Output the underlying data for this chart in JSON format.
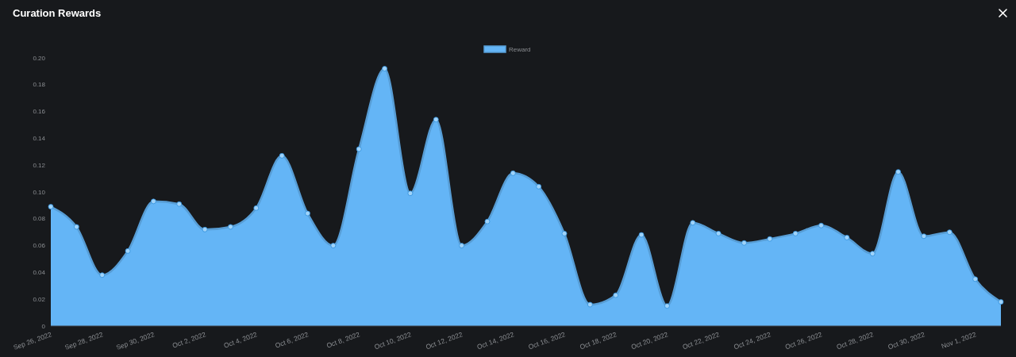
{
  "chart_data": {
    "type": "area",
    "title": "Curation Rewards",
    "x": [
      "2022-09-26",
      "2022-09-27",
      "2022-09-28",
      "2022-09-29",
      "2022-09-30",
      "2022-10-01",
      "2022-10-02",
      "2022-10-03",
      "2022-10-04",
      "2022-10-05",
      "2022-10-06",
      "2022-10-07",
      "2022-10-08",
      "2022-10-09",
      "2022-10-10",
      "2022-10-11",
      "2022-10-12",
      "2022-10-13",
      "2022-10-14",
      "2022-10-15",
      "2022-10-16",
      "2022-10-17",
      "2022-10-18",
      "2022-10-19",
      "2022-10-20",
      "2022-10-21",
      "2022-10-22",
      "2022-10-23",
      "2022-10-24",
      "2022-10-25",
      "2022-10-26",
      "2022-10-27",
      "2022-10-28",
      "2022-10-29",
      "2022-10-30",
      "2022-10-31",
      "2022-11-01",
      "2022-11-02"
    ],
    "series": [
      {
        "name": "Reward",
        "color": "#64b5f6",
        "values": [
          0.089,
          0.074,
          0.038,
          0.056,
          0.093,
          0.091,
          0.072,
          0.074,
          0.088,
          0.127,
          0.084,
          0.06,
          0.132,
          0.192,
          0.099,
          0.154,
          0.06,
          0.078,
          0.114,
          0.104,
          0.069,
          0.016,
          0.023,
          0.068,
          0.015,
          0.077,
          0.069,
          0.062,
          0.065,
          0.069,
          0.075,
          0.066,
          0.054,
          0.115,
          0.067,
          0.07,
          0.035,
          0.018
        ]
      }
    ],
    "xlim": [
      "2022-09-26",
      "2022-11-02"
    ],
    "xticks": [
      {
        "value": "2022-09-26",
        "label": "Sep 26, 2022"
      },
      {
        "value": "2022-09-28",
        "label": "Sep 28, 2022"
      },
      {
        "value": "2022-09-30",
        "label": "Sep 30, 2022"
      },
      {
        "value": "2022-10-02",
        "label": "Oct 2, 2022"
      },
      {
        "value": "2022-10-04",
        "label": "Oct 4, 2022"
      },
      {
        "value": "2022-10-06",
        "label": "Oct 6, 2022"
      },
      {
        "value": "2022-10-08",
        "label": "Oct 8, 2022"
      },
      {
        "value": "2022-10-10",
        "label": "Oct 10, 2022"
      },
      {
        "value": "2022-10-12",
        "label": "Oct 12, 2022"
      },
      {
        "value": "2022-10-14",
        "label": "Oct 14, 2022"
      },
      {
        "value": "2022-10-16",
        "label": "Oct 16, 2022"
      },
      {
        "value": "2022-10-18",
        "label": "Oct 18, 2022"
      },
      {
        "value": "2022-10-20",
        "label": "Oct 20, 2022"
      },
      {
        "value": "2022-10-22",
        "label": "Oct 22, 2022"
      },
      {
        "value": "2022-10-24",
        "label": "Oct 24, 2022"
      },
      {
        "value": "2022-10-26",
        "label": "Oct 26, 2022"
      },
      {
        "value": "2022-10-28",
        "label": "Oct 28, 2022"
      },
      {
        "value": "2022-10-30",
        "label": "Oct 30, 2022"
      },
      {
        "value": "2022-11-01",
        "label": "Nov 1, 2022"
      }
    ],
    "ylim": [
      0,
      0.2
    ],
    "yticks": [
      {
        "value": 0,
        "label": "0"
      },
      {
        "value": 0.02,
        "label": "0.02"
      },
      {
        "value": 0.04,
        "label": "0.04"
      },
      {
        "value": 0.06,
        "label": "0.06"
      },
      {
        "value": 0.08,
        "label": "0.08"
      },
      {
        "value": 0.1,
        "label": "0.10"
      },
      {
        "value": 0.12,
        "label": "0.12"
      },
      {
        "value": 0.14,
        "label": "0.14"
      },
      {
        "value": 0.16,
        "label": "0.16"
      },
      {
        "value": 0.18,
        "label": "0.18"
      },
      {
        "value": 0.2,
        "label": "0.20"
      }
    ],
    "legend": "top",
    "marker": "circle",
    "line_style": "solid"
  }
}
